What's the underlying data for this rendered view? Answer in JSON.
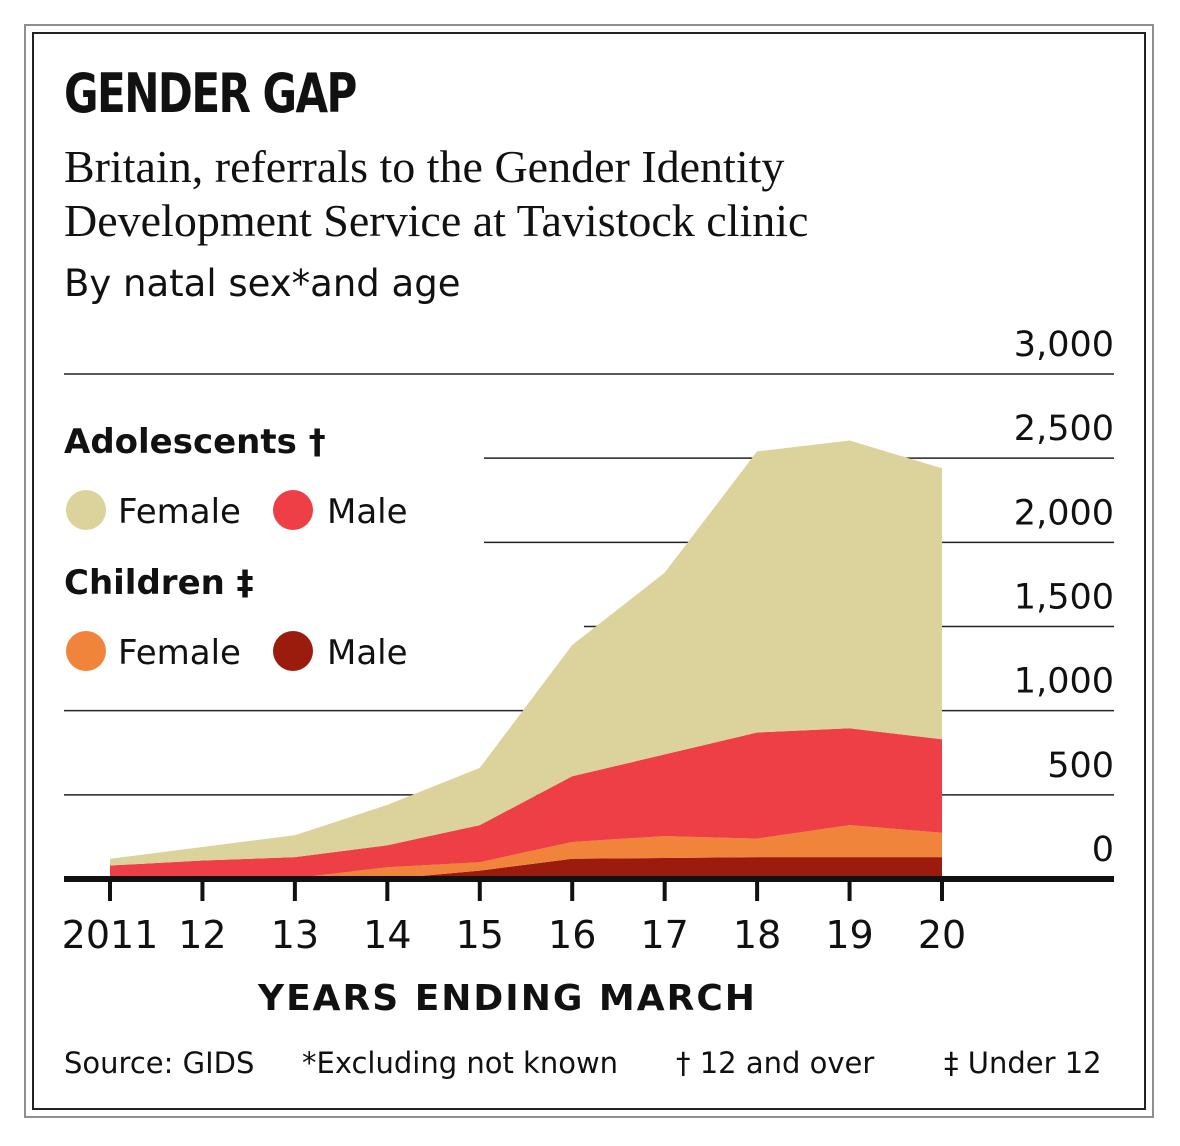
{
  "title": "GENDER GAP",
  "subtitle": "Britain, referrals to the Gender Identity Development Service at Tavistock clinic",
  "subtitle2": "By natal sex*and age",
  "footer": {
    "source": "Source: GIDS",
    "note1": "*Excluding not known",
    "note2": "† 12 and over",
    "note3": "‡ Under 12"
  },
  "chart_data": {
    "type": "area",
    "stacked": true,
    "title": "GENDER GAP",
    "xlabel": "YEARS ENDING MARCH",
    "ylabel": "",
    "x": [
      2011,
      2012,
      2013,
      2014,
      2015,
      2016,
      2017,
      2018,
      2019,
      2020
    ],
    "x_tick_labels": [
      "2011",
      "12",
      "13",
      "14",
      "15",
      "16",
      "17",
      "18",
      "19",
      "20"
    ],
    "y_tick_labels": [
      "0",
      "500",
      "1,000",
      "1,500",
      "2,000",
      "2,500",
      "3,000"
    ],
    "y_ticks": [
      0,
      500,
      1000,
      1500,
      2000,
      2500,
      3000
    ],
    "ylim": [
      0,
      3000
    ],
    "legend": {
      "group1": "Adolescents †",
      "group2": "Children ‡"
    },
    "series": [
      {
        "name": "Male",
        "group": "Children",
        "color": "#9b1b0c",
        "values": [
          0,
          0,
          0,
          0,
          50,
          120,
          125,
          130,
          130,
          130
        ]
      },
      {
        "name": "Female",
        "group": "Children",
        "color": "#f0843a",
        "values": [
          0,
          0,
          5,
          70,
          50,
          100,
          130,
          110,
          190,
          145
        ]
      },
      {
        "name": "Male",
        "group": "Adolescents",
        "color": "#ee3f46",
        "values": [
          80,
          110,
          125,
          130,
          220,
          390,
          485,
          630,
          575,
          555
        ]
      },
      {
        "name": "Female",
        "group": "Adolescents",
        "color": "#dcd29c",
        "values": [
          40,
          80,
          130,
          240,
          340,
          780,
          1080,
          1670,
          1710,
          1610
        ]
      }
    ]
  }
}
